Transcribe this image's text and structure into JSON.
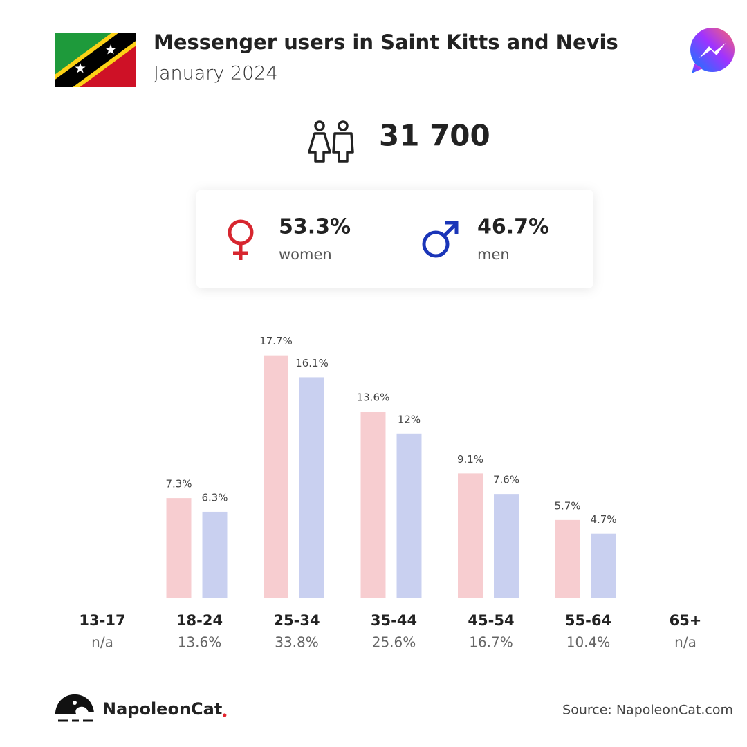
{
  "header": {
    "title": "Messenger users in Saint Kitts and Nevis",
    "subtitle": "January 2024"
  },
  "total": {
    "value": 31700,
    "label": "31 700"
  },
  "gender": [
    {
      "value": 53.3,
      "value_label": "53.3%",
      "label": "women",
      "color": "#d7262f"
    },
    {
      "value": 46.7,
      "value_label": "46.7%",
      "label": "men",
      "color": "#1a35b8"
    }
  ],
  "chart_data": {
    "type": "bar",
    "categories": [
      "13-17",
      "18-24",
      "25-34",
      "35-44",
      "45-54",
      "55-64",
      "65+"
    ],
    "totals": [
      null,
      13.6,
      33.8,
      25.6,
      16.7,
      10.4,
      null
    ],
    "total_labels": [
      "n/a",
      "13.6%",
      "33.8%",
      "25.6%",
      "16.7%",
      "10.4%",
      "n/a"
    ],
    "series": [
      {
        "color": "#f7cdd0",
        "values": [
          null,
          7.3,
          17.7,
          13.6,
          9.1,
          5.7,
          null
        ],
        "value_labels": [
          null,
          "7.3%",
          "17.7%",
          "13.6%",
          "9.1%",
          "5.7%",
          null
        ]
      },
      {
        "color": "#c9d0f0",
        "values": [
          null,
          6.3,
          16.1,
          12,
          7.6,
          4.7,
          null
        ],
        "value_labels": [
          null,
          "6.3%",
          "16.1%",
          "12%",
          "7.6%",
          "4.7%",
          null
        ]
      }
    ]
  },
  "footer": {
    "brand": "NapoleonCat",
    "source": "Source: NapoleonCat.com"
  }
}
